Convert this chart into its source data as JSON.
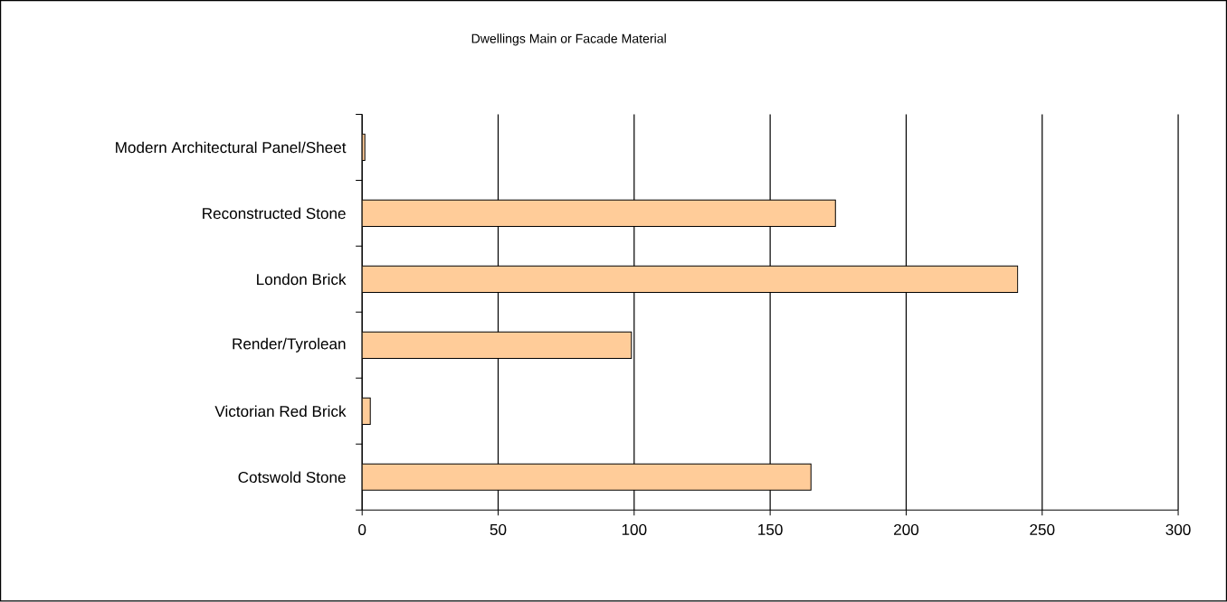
{
  "chart_data": {
    "type": "bar",
    "orientation": "horizontal",
    "title": "Dwellings Main or Facade Material",
    "categories": [
      "Modern Architectural Panel/Sheet",
      "Reconstructed Stone",
      "London Brick",
      "Render/Tyrolean",
      "Victorian Red Brick",
      "Cotswold Stone"
    ],
    "values": [
      1,
      174,
      241,
      99,
      3,
      165
    ],
    "color": "#ffcc99",
    "xlim": [
      0,
      300
    ],
    "xticks": [
      0,
      50,
      100,
      150,
      200,
      250,
      300
    ],
    "grid": "x"
  }
}
